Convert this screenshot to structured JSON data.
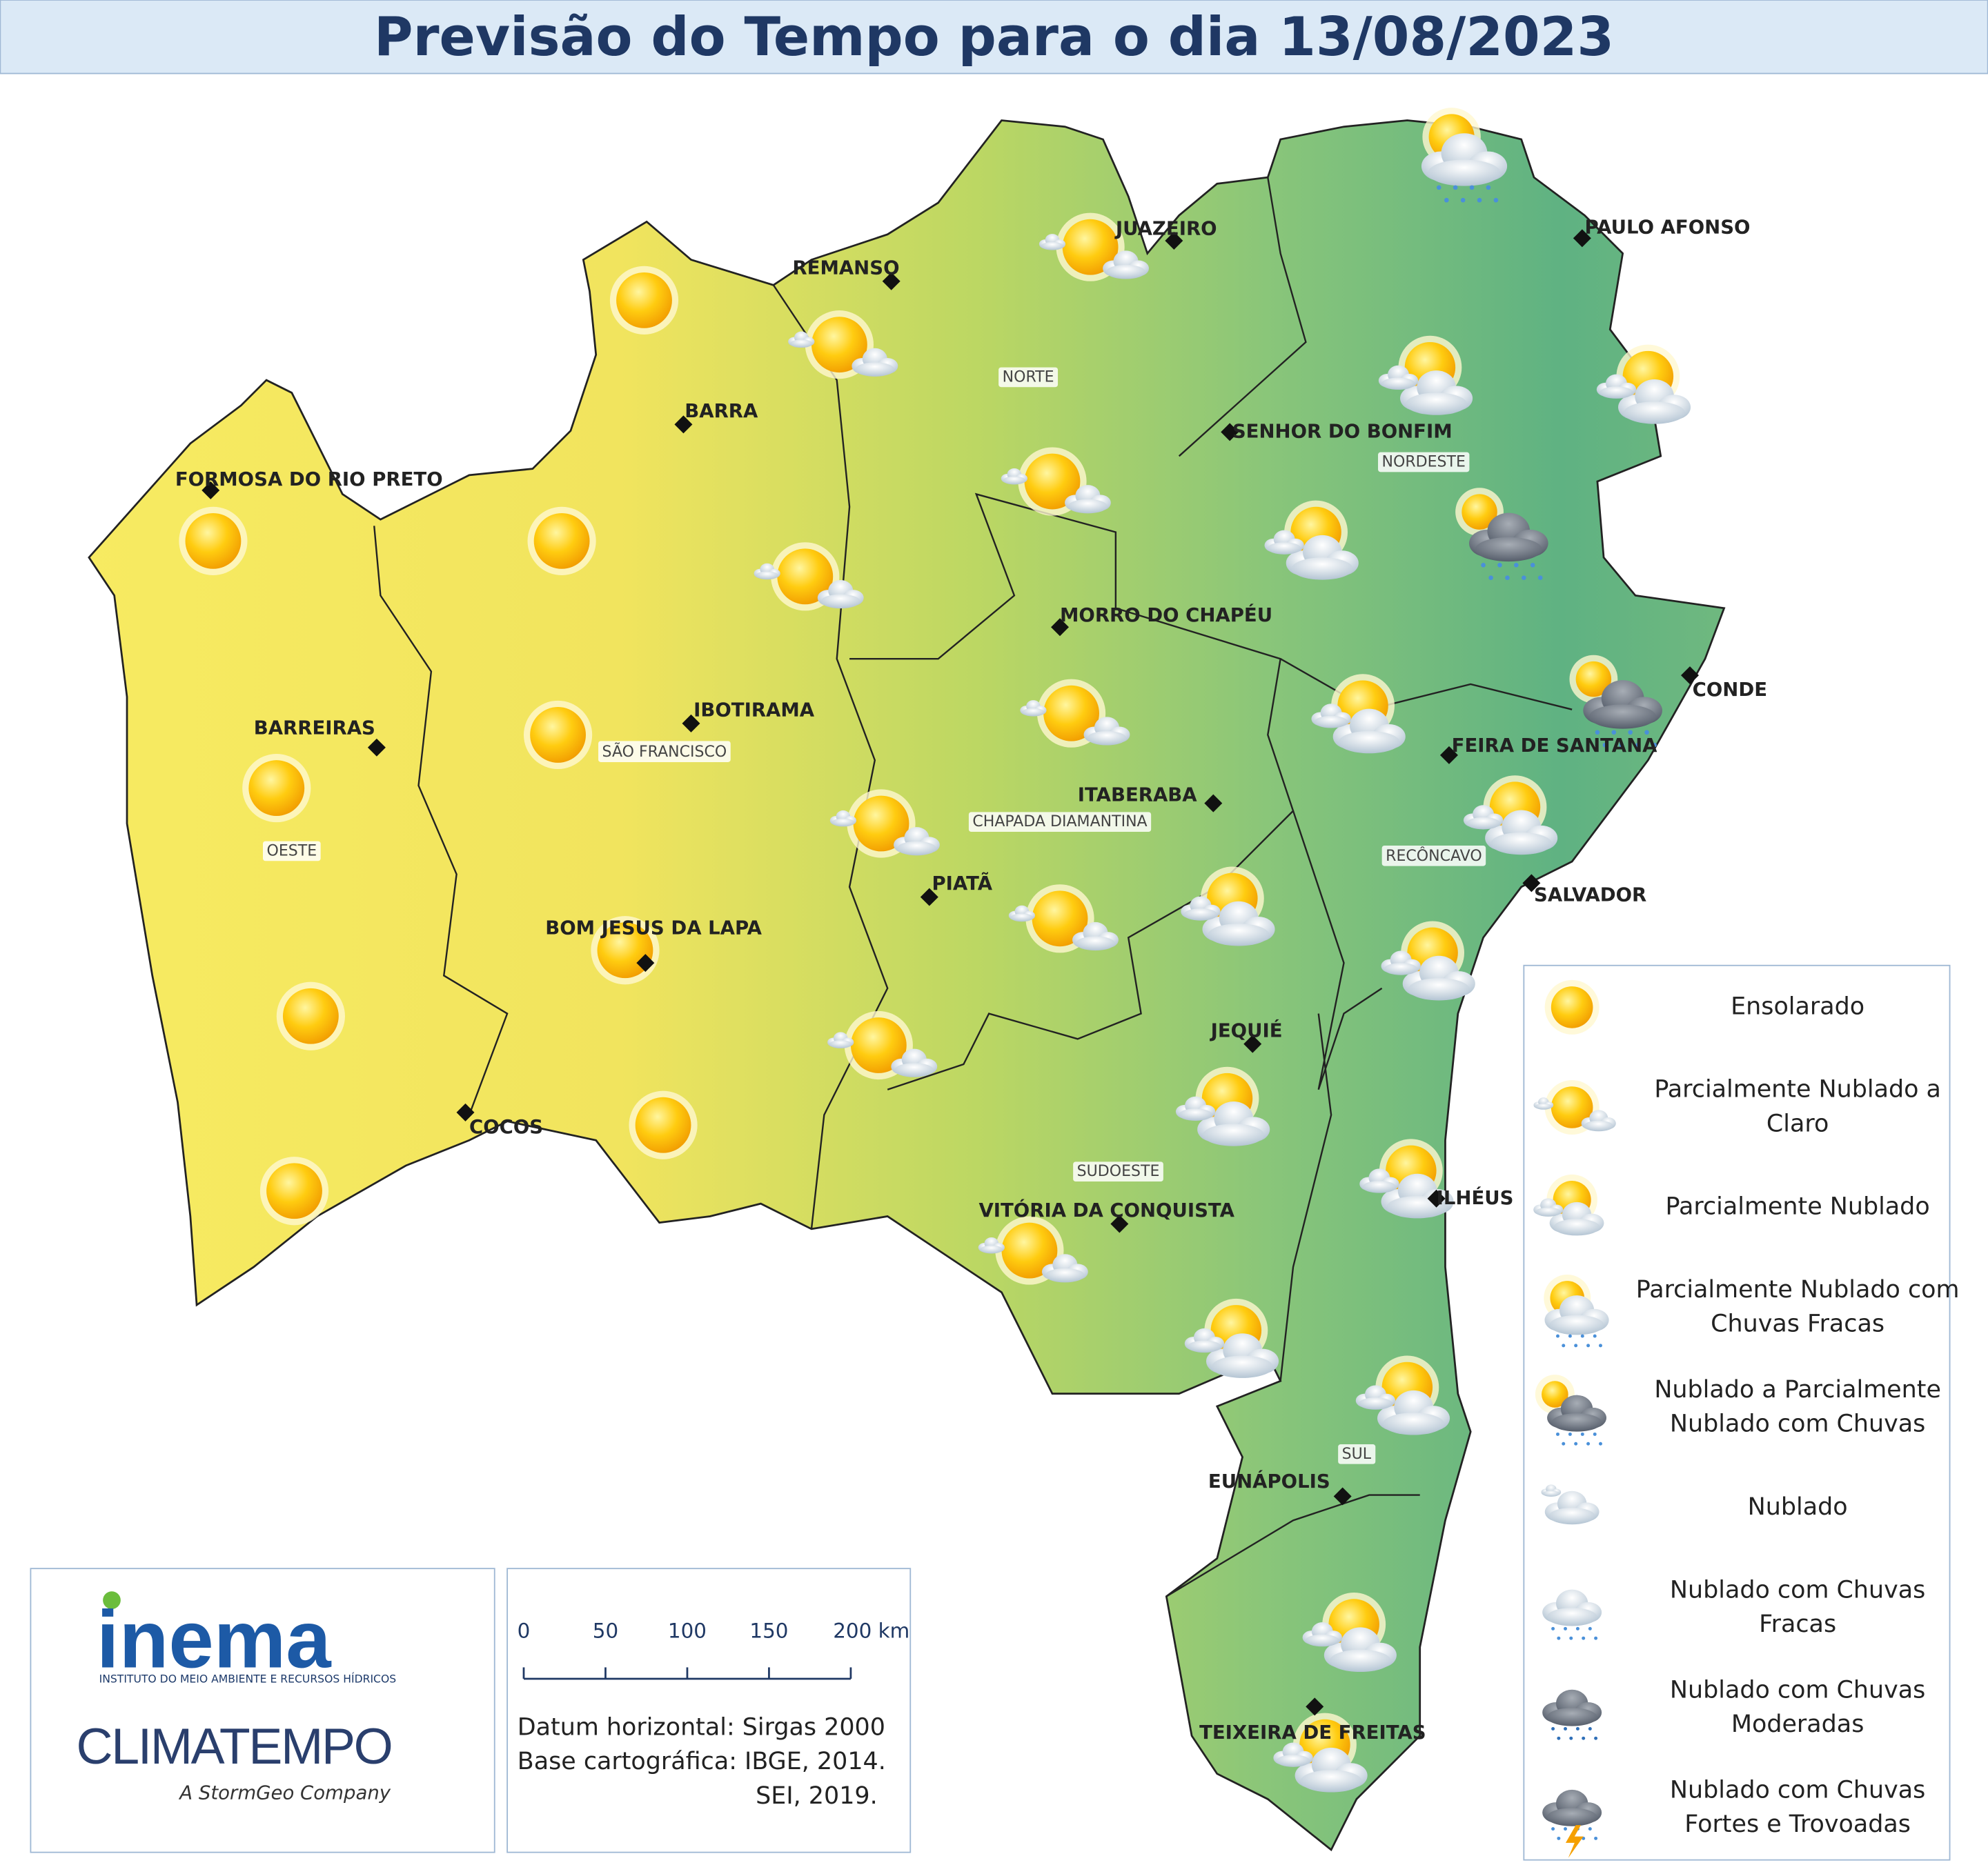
{
  "title": "Previsão do Tempo para o dia 13/08/2023",
  "cities": [
    "JUAZEIRO",
    "PAULO AFONSO",
    "REMANSO",
    "BARRA",
    "SENHOR DO BONFIM",
    "FORMOSA DO RIO PRETO",
    "MORRO DO CHAPÉU",
    "IBOTIRAMA",
    "CONDE",
    "BARREIRAS",
    "FEIRA DE SANTANA",
    "ITABERABA",
    "SALVADOR",
    "PIATÃ",
    "BOM JESUS DA LAPA",
    "JEQUIÉ",
    "COCOS",
    "ILHÉUS",
    "VITÓRIA DA CONQUISTA",
    "EUNÁPOLIS",
    "TEIXEIRA DE FREITAS"
  ],
  "regions": [
    "NORTE",
    "NORDESTE",
    "SÃO FRANCISCO",
    "OESTE",
    "CHAPADA DIAMANTINA",
    "RECÔNCAVO",
    "SUDOESTE",
    "SUL"
  ],
  "legend": [
    [
      "Ensolarado"
    ],
    [
      "Parcialmente Nublado a",
      "Claro"
    ],
    [
      "Parcialmente Nublado"
    ],
    [
      "Parcialmente Nublado com",
      "Chuvas Fracas"
    ],
    [
      "Nublado a Parcialmente",
      "Nublado com Chuvas"
    ],
    [
      "Nublado"
    ],
    [
      "Nublado com Chuvas",
      "Fracas"
    ],
    [
      "Nublado com Chuvas",
      "Moderadas"
    ],
    [
      "Nublado com Chuvas",
      "Fortes e Trovoadas"
    ]
  ],
  "scale": [
    "0",
    "50",
    "100",
    "150",
    "200 km"
  ],
  "datum": [
    "Datum horizontal: Sirgas 2000",
    "Base cartográfica: IBGE, 2014.",
    "SEI, 2019."
  ],
  "logos": {
    "inema": "inema",
    "inema_sub": "INSTITUTO DO MEIO AMBIENTE E RECURSOS HÍDRICOS",
    "climatempo": "CLIMATEMPO",
    "climatempo_sub": "A StormGeo Company"
  }
}
